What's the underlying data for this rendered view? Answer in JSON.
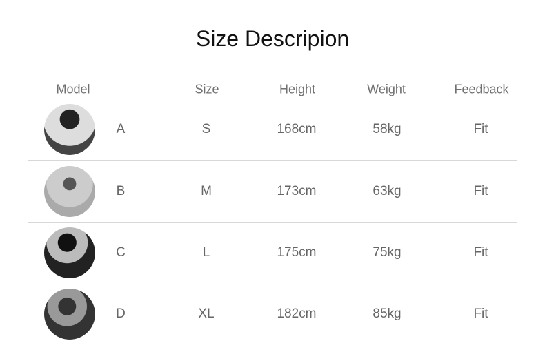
{
  "title": "Size Descripion",
  "headers": {
    "model": "Model",
    "size": "Size",
    "height": "Height",
    "weight": "Weight",
    "feedback": "Feedback"
  },
  "rows": [
    {
      "model": "A",
      "size": "S",
      "height": "168cm",
      "weight": "58kg",
      "feedback": "Fit"
    },
    {
      "model": "B",
      "size": "M",
      "height": "173cm",
      "weight": "63kg",
      "feedback": "Fit"
    },
    {
      "model": "C",
      "size": "L",
      "height": "175cm",
      "weight": "75kg",
      "feedback": "Fit"
    },
    {
      "model": "D",
      "size": "XL",
      "height": "182cm",
      "weight": "85kg",
      "feedback": "Fit"
    }
  ]
}
